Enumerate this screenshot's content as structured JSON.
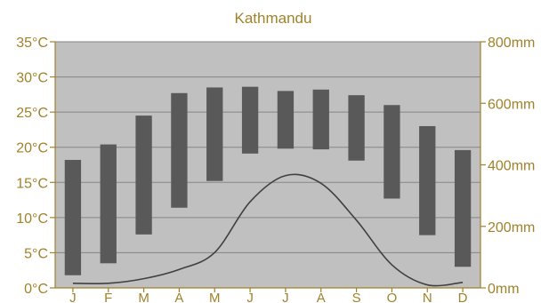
{
  "chart_data": {
    "type": "bar",
    "title": "Kathmandu",
    "categories": [
      "J",
      "F",
      "M",
      "A",
      "M",
      "J",
      "J",
      "A",
      "S",
      "O",
      "N",
      "D"
    ],
    "temperature_range": {
      "low": [
        1.8,
        3.5,
        7.6,
        11.4,
        15.2,
        19.1,
        19.8,
        19.7,
        18.1,
        12.7,
        7.5,
        3.0
      ],
      "high": [
        18.2,
        20.4,
        24.5,
        27.7,
        28.5,
        28.6,
        28.0,
        28.2,
        27.4,
        26.0,
        23.0,
        19.6
      ]
    },
    "precipitation": {
      "unit": "mm",
      "values": [
        15,
        15,
        30,
        60,
        115,
        280,
        365,
        340,
        220,
        75,
        10,
        18
      ]
    },
    "left_axis": {
      "unit": "°C",
      "min": 0,
      "max": 35,
      "ticks": [
        "0°C",
        "5°C",
        "10°C",
        "15°C",
        "20°C",
        "25°C",
        "30°C",
        "35°C"
      ]
    },
    "right_axis": {
      "unit": "mm",
      "min": 0,
      "max": 800,
      "ticks": [
        "0mm",
        "200mm",
        "400mm",
        "600mm",
        "800mm"
      ]
    },
    "grid": true,
    "colors": {
      "plot_bg": "#c0c0c0",
      "bar": "#595959",
      "line": "#404040",
      "grid": "#858585",
      "axis_text": "#a0822a",
      "axis_line": "#a0822a"
    }
  }
}
